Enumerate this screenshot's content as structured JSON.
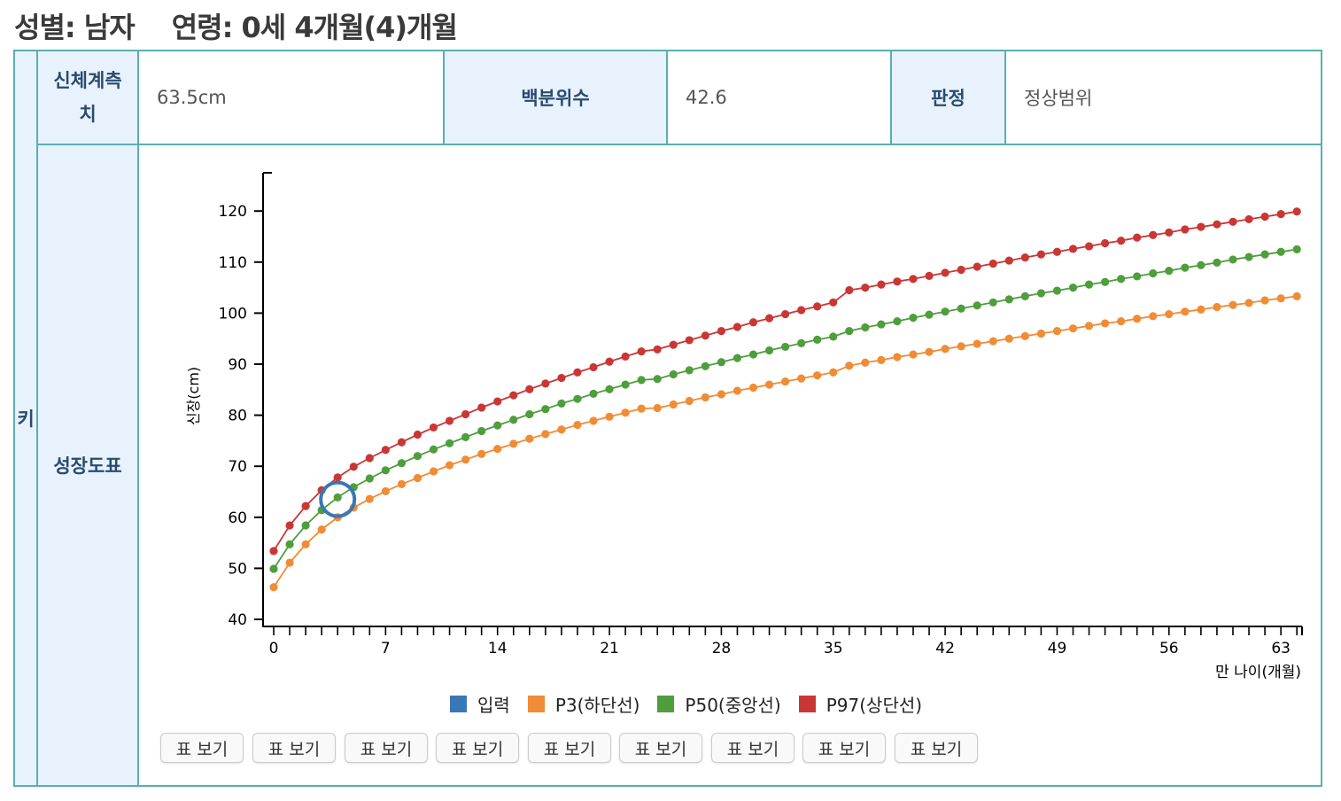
{
  "header": {
    "sex_label": "성별: 남자",
    "age_label": "연령: 0세 4개월(4)개월"
  },
  "table": {
    "row_key": "키",
    "measure_label": "신체계측치",
    "measure_value": "63.5cm",
    "percentile_label": "백분위수",
    "percentile_value": "42.6",
    "judgement_label": "판정",
    "judgement_value": "정상범위",
    "chart_label": "성장도표"
  },
  "buttons": [
    "표 보기",
    "표 보기",
    "표 보기",
    "표 보기",
    "표 보기",
    "표 보기",
    "표 보기",
    "표 보기",
    "표 보기"
  ],
  "colors": {
    "input": "#3a77b5",
    "p3": "#f08c36",
    "p50": "#4e9e3c",
    "p97": "#c93735"
  },
  "chart_data": {
    "type": "line",
    "xlabel": "만 나이(개월)",
    "ylabel": "신장(cm)",
    "xlim": [
      0,
      64
    ],
    "ylim": [
      39,
      128
    ],
    "xticks": [
      0,
      7,
      14,
      21,
      28,
      35,
      42,
      49,
      56,
      63
    ],
    "yticks": [
      40,
      50,
      60,
      70,
      80,
      90,
      100,
      110,
      120
    ],
    "input_point": {
      "x": 4,
      "y": 63.5
    },
    "legend": [
      "입력",
      "P3(하단선)",
      "P50(중앙선)",
      "P97(상단선)"
    ],
    "series": [
      {
        "name": "P3(하단선)",
        "color": "#f08c36",
        "x": [
          0,
          1,
          2,
          3,
          4,
          5,
          6,
          7,
          8,
          9,
          10,
          11,
          12,
          13,
          14,
          15,
          16,
          17,
          18,
          19,
          20,
          21,
          22,
          23,
          24,
          25,
          26,
          27,
          28,
          29,
          30,
          31,
          32,
          33,
          34,
          35,
          36,
          37,
          38,
          39,
          40,
          41,
          42,
          43,
          44,
          45,
          46,
          47,
          48,
          49,
          50,
          51,
          52,
          53,
          54,
          55,
          56,
          57,
          58,
          59,
          60,
          61,
          62,
          63,
          64
        ],
        "values": [
          46.3,
          51.1,
          54.7,
          57.6,
          60.0,
          61.9,
          63.6,
          65.1,
          66.5,
          67.7,
          69.0,
          70.2,
          71.3,
          72.4,
          73.4,
          74.4,
          75.4,
          76.3,
          77.2,
          78.1,
          78.9,
          79.7,
          80.5,
          81.3,
          81.4,
          82.1,
          82.8,
          83.5,
          84.1,
          84.8,
          85.4,
          86.0,
          86.6,
          87.2,
          87.8,
          88.4,
          89.7,
          90.3,
          90.8,
          91.4,
          91.9,
          92.4,
          93.0,
          93.5,
          94.0,
          94.5,
          95.0,
          95.5,
          96.0,
          96.5,
          97.0,
          97.5,
          98.0,
          98.4,
          98.9,
          99.4,
          99.8,
          100.3,
          100.7,
          101.2,
          101.6,
          102.0,
          102.5,
          102.9,
          103.3
        ]
      },
      {
        "name": "P50(중앙선)",
        "color": "#4e9e3c",
        "x": [
          0,
          1,
          2,
          3,
          4,
          5,
          6,
          7,
          8,
          9,
          10,
          11,
          12,
          13,
          14,
          15,
          16,
          17,
          18,
          19,
          20,
          21,
          22,
          23,
          24,
          25,
          26,
          27,
          28,
          29,
          30,
          31,
          32,
          33,
          34,
          35,
          36,
          37,
          38,
          39,
          40,
          41,
          42,
          43,
          44,
          45,
          46,
          47,
          48,
          49,
          50,
          51,
          52,
          53,
          54,
          55,
          56,
          57,
          58,
          59,
          60,
          61,
          62,
          63,
          64
        ],
        "values": [
          49.9,
          54.7,
          58.4,
          61.4,
          63.9,
          65.9,
          67.6,
          69.2,
          70.6,
          72.0,
          73.3,
          74.5,
          75.7,
          76.9,
          78.0,
          79.1,
          80.2,
          81.2,
          82.3,
          83.2,
          84.2,
          85.1,
          86.0,
          86.9,
          87.1,
          88.0,
          88.8,
          89.6,
          90.4,
          91.2,
          91.9,
          92.7,
          93.4,
          94.1,
          94.8,
          95.4,
          96.5,
          97.2,
          97.8,
          98.4,
          99.1,
          99.7,
          100.3,
          100.9,
          101.5,
          102.1,
          102.7,
          103.3,
          103.9,
          104.4,
          105.0,
          105.6,
          106.1,
          106.7,
          107.2,
          107.8,
          108.3,
          108.9,
          109.4,
          109.9,
          110.5,
          111.0,
          111.5,
          112.0,
          112.5
        ]
      },
      {
        "name": "P97(상단선)",
        "color": "#c93735",
        "x": [
          0,
          1,
          2,
          3,
          4,
          5,
          6,
          7,
          8,
          9,
          10,
          11,
          12,
          13,
          14,
          15,
          16,
          17,
          18,
          19,
          20,
          21,
          22,
          23,
          24,
          25,
          26,
          27,
          28,
          29,
          30,
          31,
          32,
          33,
          34,
          35,
          36,
          37,
          38,
          39,
          40,
          41,
          42,
          43,
          44,
          45,
          46,
          47,
          48,
          49,
          50,
          51,
          52,
          53,
          54,
          55,
          56,
          57,
          58,
          59,
          60,
          61,
          62,
          63,
          64
        ],
        "values": [
          53.4,
          58.4,
          62.2,
          65.3,
          67.8,
          69.9,
          71.6,
          73.2,
          74.7,
          76.2,
          77.6,
          78.9,
          80.2,
          81.5,
          82.7,
          83.9,
          85.1,
          86.2,
          87.3,
          88.4,
          89.4,
          90.5,
          91.5,
          92.5,
          92.9,
          93.8,
          94.7,
          95.6,
          96.5,
          97.3,
          98.2,
          99.0,
          99.8,
          100.6,
          101.3,
          102.1,
          104.5,
          105.0,
          105.6,
          106.2,
          106.7,
          107.3,
          107.9,
          108.5,
          109.1,
          109.7,
          110.3,
          110.9,
          111.5,
          112.0,
          112.6,
          113.1,
          113.7,
          114.2,
          114.8,
          115.3,
          115.8,
          116.4,
          116.9,
          117.4,
          117.9,
          118.4,
          118.9,
          119.4,
          119.9
        ]
      }
    ]
  }
}
